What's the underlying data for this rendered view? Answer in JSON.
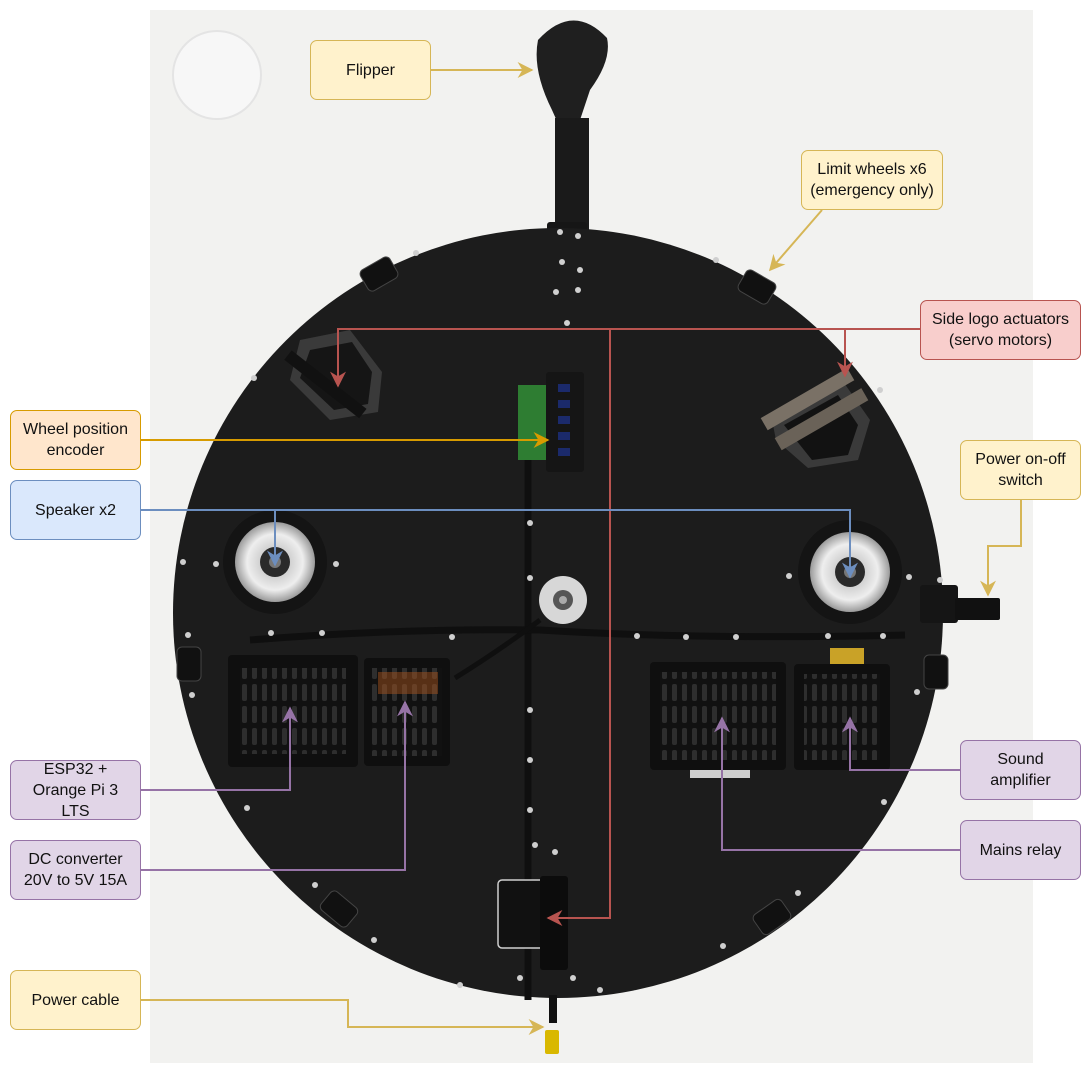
{
  "figure": {
    "colors": {
      "yellow_line": "#d6b656",
      "orange_line": "#d79b00",
      "blue_line": "#6c8ebf",
      "red_line": "#b85450",
      "purple_line": "#9673a6",
      "board": "#1c1c1c",
      "background": "#f2f2f0"
    }
  },
  "callouts": {
    "flipper": "Flipper",
    "limit_wheels": "Limit wheels x6\n(emergency only)",
    "side_logo": "Side logo actuators\n(servo motors)",
    "wheel_encoder": "Wheel position\nencoder",
    "power_switch": "Power on-off\nswitch",
    "speaker": "Speaker x2",
    "esp32": "ESP32 +\nOrange Pi 3 LTS",
    "sound_amp": "Sound\namplifier",
    "dc_converter": "DC converter\n20V to 5V 15A",
    "mains_relay": "Mains relay",
    "power_cable": "Power cable"
  }
}
